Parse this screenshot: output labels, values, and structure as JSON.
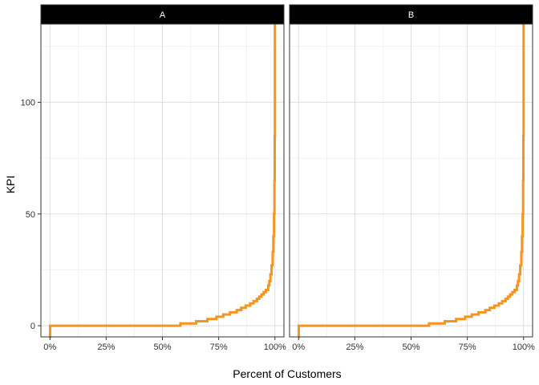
{
  "chart_data": {
    "type": "line",
    "step": true,
    "xlabel": "Percent of Customers",
    "ylabel": "KPI",
    "xlim": [
      -0.04,
      1.04
    ],
    "ylim": [
      -5,
      135
    ],
    "x_ticks": [
      0,
      0.25,
      0.5,
      0.75,
      1.0
    ],
    "x_tick_labels": [
      "0%",
      "25%",
      "50%",
      "75%",
      "100%"
    ],
    "y_ticks": [
      0,
      50,
      100
    ],
    "y_tick_labels": [
      "0",
      "50",
      "100"
    ],
    "grid": true,
    "line_color": "#F7941D",
    "strip_color": "#000000",
    "panels": [
      {
        "label": "A",
        "series": [
          {
            "x": [
              0,
              0.001,
              0.58,
              0.65,
              0.7,
              0.74,
              0.77,
              0.8,
              0.83,
              0.85,
              0.87,
              0.89,
              0.905,
              0.92,
              0.93,
              0.94,
              0.95,
              0.96,
              0.97,
              0.975,
              0.98,
              0.985,
              0.99,
              0.993,
              0.996,
              0.998,
              0.999,
              1.0,
              1.0
            ],
            "y": [
              -5,
              0,
              1,
              2,
              3,
              4,
              5,
              6,
              7,
              8,
              9,
              10,
              11,
              12,
              13,
              14,
              15,
              16,
              18,
              20,
              23,
              27,
              33,
              40,
              50,
              65,
              85,
              110,
              135
            ]
          }
        ]
      },
      {
        "label": "B",
        "series": [
          {
            "x": [
              0,
              0.001,
              0.58,
              0.65,
              0.7,
              0.74,
              0.77,
              0.8,
              0.83,
              0.85,
              0.87,
              0.89,
              0.905,
              0.92,
              0.93,
              0.94,
              0.95,
              0.96,
              0.97,
              0.975,
              0.98,
              0.985,
              0.99,
              0.993,
              0.996,
              0.998,
              0.999,
              1.0,
              1.0
            ],
            "y": [
              -5,
              0,
              1,
              2,
              3,
              4,
              5,
              6,
              7,
              8,
              9,
              10,
              11,
              12,
              13,
              14,
              15,
              16,
              18,
              20,
              23,
              27,
              33,
              40,
              50,
              65,
              85,
              110,
              135
            ]
          }
        ]
      }
    ]
  }
}
